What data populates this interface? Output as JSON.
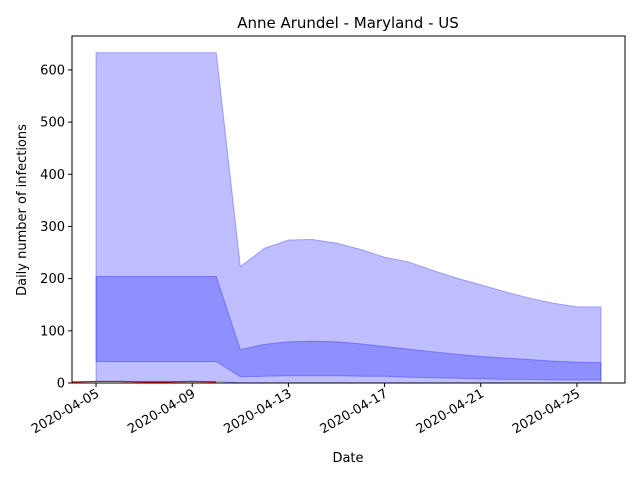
{
  "chart_data": {
    "type": "area",
    "title": "Anne Arundel - Maryland - US",
    "xlabel": "Date",
    "ylabel": "Daily number of infections",
    "x": [
      "2020-04-04",
      "2020-04-05",
      "2020-04-06",
      "2020-04-07",
      "2020-04-08",
      "2020-04-09",
      "2020-04-10",
      "2020-04-11",
      "2020-04-12",
      "2020-04-13",
      "2020-04-14",
      "2020-04-15",
      "2020-04-16",
      "2020-04-17",
      "2020-04-18",
      "2020-04-19",
      "2020-04-20",
      "2020-04-21",
      "2020-04-22",
      "2020-04-23",
      "2020-04-24",
      "2020-04-25",
      "2020-04-26"
    ],
    "xticks": [
      "2020-04-05",
      "2020-04-09",
      "2020-04-13",
      "2020-04-17",
      "2020-04-21",
      "2020-04-25"
    ],
    "yticks": [
      0,
      100,
      200,
      300,
      400,
      500,
      600
    ],
    "ylim": [
      0,
      665
    ],
    "xlim": [
      "2020-04-04",
      "2020-04-27"
    ],
    "bands": [
      {
        "role": "outer",
        "color": "#0000ff",
        "opacity": 0.25,
        "x": [
          "2020-04-05",
          "2020-04-06",
          "2020-04-07",
          "2020-04-08",
          "2020-04-09",
          "2020-04-10",
          "2020-04-11",
          "2020-04-12",
          "2020-04-13",
          "2020-04-14",
          "2020-04-15",
          "2020-04-16",
          "2020-04-17",
          "2020-04-18",
          "2020-04-19",
          "2020-04-20",
          "2020-04-21",
          "2020-04-22",
          "2020-04-23",
          "2020-04-24",
          "2020-04-25",
          "2020-04-26"
        ],
        "lower": [
          3,
          3,
          3,
          3,
          3,
          3,
          0,
          0,
          0,
          0,
          0,
          0,
          0,
          0,
          0,
          0,
          0,
          0,
          0,
          0,
          0,
          0
        ],
        "upper": [
          633,
          633,
          633,
          633,
          633,
          633,
          223,
          258,
          274,
          275,
          268,
          256,
          241,
          232,
          216,
          201,
          188,
          175,
          163,
          153,
          146,
          146
        ]
      },
      {
        "role": "inner",
        "color": "#0000ff",
        "opacity": 0.25,
        "x": [
          "2020-04-05",
          "2020-04-06",
          "2020-04-07",
          "2020-04-08",
          "2020-04-09",
          "2020-04-10",
          "2020-04-11",
          "2020-04-12",
          "2020-04-13",
          "2020-04-14",
          "2020-04-15",
          "2020-04-16",
          "2020-04-17",
          "2020-04-18",
          "2020-04-19",
          "2020-04-20",
          "2020-04-21",
          "2020-04-22",
          "2020-04-23",
          "2020-04-24",
          "2020-04-25",
          "2020-04-26"
        ],
        "lower": [
          41,
          41,
          41,
          41,
          41,
          41,
          12,
          13,
          14,
          14,
          14,
          13,
          13,
          11,
          10,
          9,
          8,
          7,
          7,
          6,
          6,
          6
        ],
        "upper": [
          204,
          204,
          204,
          204,
          204,
          204,
          64,
          74,
          79,
          80,
          79,
          75,
          70,
          65,
          60,
          55,
          51,
          48,
          45,
          42,
          40,
          39
        ]
      }
    ],
    "line": {
      "color": "#ff0000",
      "x": [
        "2020-04-04",
        "2020-04-05",
        "2020-04-06",
        "2020-04-07",
        "2020-04-08",
        "2020-04-09",
        "2020-04-10"
      ],
      "y": [
        2,
        3,
        3,
        2,
        2,
        3,
        2
      ]
    }
  }
}
